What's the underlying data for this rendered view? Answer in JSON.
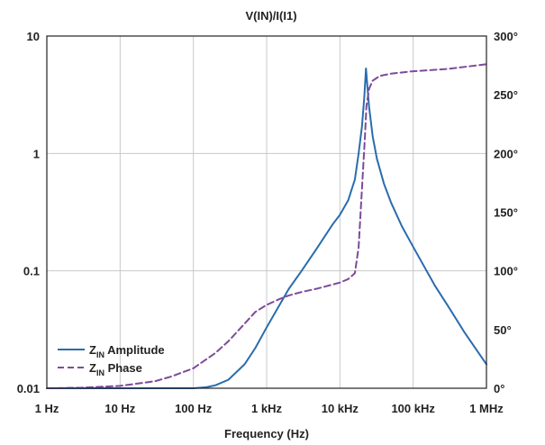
{
  "chart_data": {
    "type": "line",
    "title": "V(IN)/I(I1)",
    "xlabel": "Frequency (Hz)",
    "x_scale": "log",
    "xlim": [
      1,
      1000000
    ],
    "x_ticks": [
      {
        "value": 1,
        "label": "1 Hz"
      },
      {
        "value": 10,
        "label": "10 Hz"
      },
      {
        "value": 100,
        "label": "100 Hz"
      },
      {
        "value": 1000,
        "label": "1 kHz"
      },
      {
        "value": 10000,
        "label": "10 kHz"
      },
      {
        "value": 100000,
        "label": "100 kHz"
      },
      {
        "value": 1000000,
        "label": "1 MHz"
      }
    ],
    "y_left": {
      "scale": "log",
      "lim": [
        0.01,
        10
      ],
      "ticks": [
        {
          "value": 0.01,
          "label": "0.01"
        },
        {
          "value": 0.1,
          "label": "0.1"
        },
        {
          "value": 1,
          "label": "1"
        },
        {
          "value": 10,
          "label": "10"
        }
      ]
    },
    "y_right": {
      "scale": "linear",
      "lim": [
        0,
        300
      ],
      "ticks": [
        {
          "value": 0,
          "label": "0°"
        },
        {
          "value": 50,
          "label": "50°"
        },
        {
          "value": 100,
          "label": "100°"
        },
        {
          "value": 150,
          "label": "150°"
        },
        {
          "value": 200,
          "label": "200°"
        },
        {
          "value": 250,
          "label": "250°"
        },
        {
          "value": 300,
          "label": "300°"
        }
      ]
    },
    "grid": true,
    "legend_position": "bottom-left",
    "series": [
      {
        "name_main": "Z",
        "name_sub": "IN",
        "name_rest": " Amplitude",
        "axis": "left",
        "color": "#2a6cad",
        "dash": "solid",
        "points": [
          [
            1,
            0.01
          ],
          [
            100,
            0.01
          ],
          [
            150,
            0.0102
          ],
          [
            200,
            0.0106
          ],
          [
            300,
            0.0118
          ],
          [
            500,
            0.016
          ],
          [
            700,
            0.022
          ],
          [
            1000,
            0.033
          ],
          [
            2000,
            0.07
          ],
          [
            3000,
            0.1
          ],
          [
            5000,
            0.16
          ],
          [
            8000,
            0.25
          ],
          [
            10000,
            0.3
          ],
          [
            13000,
            0.4
          ],
          [
            16000,
            0.6
          ],
          [
            18000,
            1.0
          ],
          [
            20000,
            1.7
          ],
          [
            21500,
            3.0
          ],
          [
            22700,
            5.3
          ],
          [
            23500,
            4.0
          ],
          [
            25000,
            2.5
          ],
          [
            28000,
            1.4
          ],
          [
            32000,
            0.9
          ],
          [
            40000,
            0.55
          ],
          [
            50000,
            0.38
          ],
          [
            70000,
            0.24
          ],
          [
            100000,
            0.16
          ],
          [
            200000,
            0.074
          ],
          [
            300000,
            0.05
          ],
          [
            500000,
            0.03
          ],
          [
            1000000,
            0.016
          ]
        ]
      },
      {
        "name_main": "Z",
        "name_sub": "IN",
        "name_rest": " Phase",
        "axis": "right",
        "color": "#7e4a9b",
        "dash": "dashed",
        "points": [
          [
            1,
            0
          ],
          [
            3,
            0.5
          ],
          [
            10,
            2
          ],
          [
            30,
            6
          ],
          [
            50,
            10
          ],
          [
            100,
            17
          ],
          [
            200,
            30
          ],
          [
            300,
            40
          ],
          [
            500,
            55
          ],
          [
            700,
            65
          ],
          [
            1000,
            71
          ],
          [
            1500,
            76
          ],
          [
            2000,
            79
          ],
          [
            3000,
            82
          ],
          [
            5000,
            85
          ],
          [
            10000,
            90
          ],
          [
            13000,
            93
          ],
          [
            16000,
            98
          ],
          [
            18000,
            120
          ],
          [
            20000,
            170
          ],
          [
            22000,
            215
          ],
          [
            23000,
            240
          ],
          [
            25000,
            255
          ],
          [
            28000,
            262
          ],
          [
            35000,
            266
          ],
          [
            50000,
            268
          ],
          [
            100000,
            270
          ],
          [
            300000,
            272
          ],
          [
            1000000,
            276
          ]
        ]
      }
    ]
  }
}
